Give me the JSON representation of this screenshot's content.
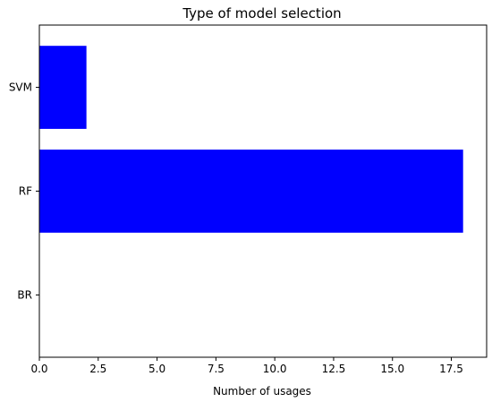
{
  "chart_data": {
    "type": "bar",
    "orientation": "horizontal",
    "title": "Type of model selection",
    "xlabel": "Number of usages",
    "ylabel": "",
    "categories": [
      "BR",
      "RF",
      "SVM"
    ],
    "values": [
      0,
      18,
      2
    ],
    "xlim": [
      0,
      19
    ],
    "xticks": [
      0.0,
      2.5,
      5.0,
      7.5,
      10.0,
      12.5,
      15.0,
      17.5
    ],
    "xtick_labels": [
      "0.0",
      "2.5",
      "5.0",
      "7.5",
      "10.0",
      "12.5",
      "15.0",
      "17.5"
    ],
    "grid": false,
    "colors": {
      "bar": "#0000ff"
    }
  }
}
